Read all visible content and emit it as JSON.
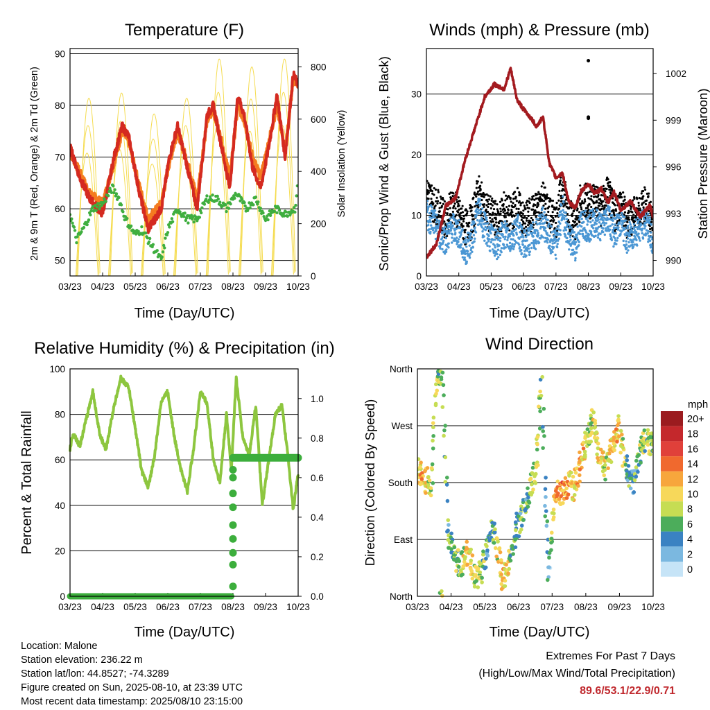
{
  "panels": {
    "temperature": {
      "title": "Temperature (F)",
      "xlabel": "Time (Day/UTC)",
      "ylabel_left": "2m & 9m T (Red, Orange) & 2m Td (Green)",
      "ylabel_right": "Solar Insolation (Yellow)"
    },
    "winds": {
      "title": "Winds (mph) & Pressure (mb)",
      "xlabel": "Time (Day/UTC)",
      "ylabel_left": "Sonic/Prop Wind & Gust (Blue, Black)",
      "ylabel_right": "Station Pressure (Maroon)"
    },
    "humidity": {
      "title": "Relative Humidity (%) & Precipitation (in)",
      "xlabel": "Time (Day/UTC)",
      "ylabel_left": "Percent & Total Rainfall"
    },
    "direction": {
      "title": "Wind Direction",
      "xlabel": "Time (Day/UTC)",
      "ylabel_left": "Direction (Colored By Speed)",
      "colorbar_title": "mph"
    }
  },
  "x_ticks": [
    "03/23",
    "04/23",
    "05/23",
    "06/23",
    "07/23",
    "08/23",
    "09/23",
    "10/23"
  ],
  "info": {
    "location": "Location: Malone",
    "elevation": "Station elevation: 236.22 m",
    "latlon": "Station lat/lon: 44.8527; -74.3289",
    "created": "Figure created on Sun, 2025-08-10, at 23:39 UTC",
    "recent": "Most recent data timestamp: 2025/08/10 23:15:00"
  },
  "extremes": {
    "title": "Extremes For Past 7 Days",
    "subtitle": "(High/Low/Max Wind/Total Precipitation)",
    "values": "89.6/53.1/22.9/0.71"
  },
  "colors": {
    "temp_2m": "#d42a20",
    "temp_9m": "#f47b20",
    "dewpoint": "#3fae3f",
    "insolation": "#f5dc50",
    "wind": "#4b97d4",
    "gust": "#000000",
    "pressure": "#a31a1f",
    "humidity": "#8dc63f",
    "precip": "#3cae3c",
    "extremes": "#c0282d"
  },
  "chart_data": [
    {
      "type": "line",
      "title": "Temperature (F)",
      "xlabel": "Time (Day/UTC)",
      "ylabel": "2m & 9m T (Red, Orange) & 2m Td (Green)",
      "y2label": "Solar Insolation (Yellow)",
      "x_ticks": [
        "03/23",
        "04/23",
        "05/23",
        "06/23",
        "07/23",
        "08/23",
        "09/23",
        "10/23"
      ],
      "ylim": [
        47,
        91
      ],
      "y2lim": [
        0,
        870
      ],
      "yticks": [
        50,
        60,
        70,
        80,
        90
      ],
      "y2ticks": [
        0,
        200,
        400,
        600,
        800
      ],
      "series": [
        {
          "name": "2m T",
          "color": "#d42a20",
          "x": [
            0,
            0.3,
            0.6,
            1.0,
            1.35,
            1.6,
            1.8,
            2.1,
            2.4,
            2.8,
            3.05,
            3.3,
            3.6,
            3.9,
            4.2,
            4.4,
            4.65,
            4.9,
            5.15,
            5.35,
            5.6,
            5.85,
            6.1,
            6.35,
            6.6,
            6.85,
            7.0
          ],
          "values": [
            72,
            66,
            62,
            59,
            70,
            76,
            74,
            64,
            56,
            60,
            70,
            76,
            68,
            60,
            78,
            80,
            72,
            64,
            82,
            78,
            68,
            64,
            72,
            82,
            70,
            86,
            84
          ]
        },
        {
          "name": "9m T",
          "color": "#f47b20",
          "x": [
            0,
            0.3,
            0.6,
            1.0,
            1.35,
            1.6,
            1.8,
            2.1,
            2.4,
            2.8,
            3.05,
            3.3,
            3.6,
            3.9,
            4.2,
            4.4,
            4.65,
            4.9,
            5.15,
            5.35,
            5.6,
            5.85,
            6.1,
            6.35,
            6.6,
            6.85,
            7.0
          ],
          "values": [
            71,
            67,
            63,
            61,
            69,
            75,
            73,
            65,
            58,
            61,
            69,
            75,
            69,
            62,
            77,
            79,
            73,
            66,
            80,
            77,
            70,
            66,
            73,
            80,
            71,
            85,
            84
          ]
        },
        {
          "name": "2m Td",
          "color": "#3fae3f",
          "x": [
            0,
            0.2,
            0.4,
            0.7,
            1.0,
            1.3,
            1.5,
            1.7,
            2.0,
            2.2,
            2.5,
            2.8,
            3.0,
            3.3,
            3.6,
            3.9,
            4.2,
            4.5,
            4.8,
            5.1,
            5.4,
            5.7,
            6.0,
            6.3,
            6.6,
            6.9,
            7.0
          ],
          "values": [
            59,
            54,
            56,
            60,
            61,
            64,
            62,
            58,
            55,
            56,
            53,
            50,
            56,
            60,
            58,
            58,
            62,
            62,
            60,
            63,
            60,
            62,
            58,
            60,
            59,
            60,
            65
          ]
        },
        {
          "name": "Solar Insolation",
          "color": "#f5dc50",
          "axis": "right",
          "peak_x": [
            0.55,
            1.55,
            2.55,
            3.55,
            4.55,
            5.55,
            6.55
          ],
          "peak_values": [
            700,
            720,
            640,
            700,
            850,
            820,
            850
          ]
        }
      ]
    },
    {
      "type": "line",
      "title": "Winds (mph) & Pressure (mb)",
      "xlabel": "Time (Day/UTC)",
      "ylabel": "Sonic/Prop Wind & Gust (Blue, Black)",
      "y2label": "Station Pressure (Maroon)",
      "x_ticks": [
        "03/23",
        "04/23",
        "05/23",
        "06/23",
        "07/23",
        "08/23",
        "09/23",
        "10/23"
      ],
      "ylim": [
        0,
        37.5
      ],
      "y2lim": [
        989,
        1003.6
      ],
      "yticks": [
        0,
        10,
        20,
        30
      ],
      "y2ticks": [
        990,
        993,
        996,
        999,
        1002
      ],
      "series": [
        {
          "name": "Pressure",
          "color": "#a31a1f",
          "axis": "right",
          "x": [
            0,
            0.3,
            0.6,
            0.9,
            1.2,
            1.5,
            1.8,
            2.1,
            2.4,
            2.6,
            2.8,
            3.0,
            3.2,
            3.4,
            3.6,
            3.8,
            4.0,
            4.2,
            4.4,
            4.6,
            4.8,
            5.0,
            5.2,
            5.4,
            5.6,
            5.8,
            6.0,
            6.3,
            6.6,
            6.9,
            7.0
          ],
          "values": [
            990.2,
            991.0,
            993.5,
            994.0,
            996.5,
            998.5,
            1000.5,
            1001.3,
            1001.0,
            1002.3,
            1000.3,
            999.7,
            999.2,
            998.6,
            999.2,
            996.2,
            995.3,
            995.6,
            993.7,
            993.4,
            994.5,
            994.9,
            994.3,
            994.6,
            993.7,
            994.4,
            993.2,
            993.8,
            992.8,
            993.5,
            992.8
          ]
        },
        {
          "name": "Gust",
          "color": "#000000",
          "x": [
            0,
            0.2,
            0.4,
            0.6,
            0.8,
            1.0,
            1.2,
            1.4,
            1.6,
            1.8,
            2.0,
            2.2,
            2.4,
            2.6,
            2.8,
            3.0,
            3.2,
            3.4,
            3.6,
            3.8,
            4.0,
            4.2,
            4.4,
            4.6,
            4.8,
            5.0,
            5.2,
            5.4,
            5.6,
            5.8,
            6.0,
            6.2,
            6.4,
            6.6,
            6.8,
            7.0
          ],
          "values": [
            14,
            12,
            11,
            9,
            12,
            10,
            8,
            9,
            14,
            11,
            10,
            9,
            11,
            10,
            12,
            9,
            10,
            11,
            13,
            10,
            9,
            15,
            10,
            9,
            13,
            12,
            13,
            11,
            14,
            10,
            12,
            9,
            10,
            11,
            12,
            8
          ]
        },
        {
          "name": "Wind",
          "color": "#4b97d4",
          "x": [
            0,
            0.2,
            0.4,
            0.6,
            0.8,
            1.0,
            1.2,
            1.4,
            1.6,
            1.8,
            2.0,
            2.2,
            2.4,
            2.6,
            2.8,
            3.0,
            3.2,
            3.4,
            3.6,
            3.8,
            4.0,
            4.2,
            4.4,
            4.6,
            4.8,
            5.0,
            5.2,
            5.4,
            5.6,
            5.8,
            6.0,
            6.2,
            6.4,
            6.6,
            6.8,
            7.0
          ],
          "values": [
            10,
            9,
            7,
            6,
            8,
            7,
            4,
            6,
            11,
            8,
            6,
            5,
            7,
            6,
            8,
            5,
            6,
            7,
            9,
            6,
            5,
            11,
            6,
            5,
            9,
            8,
            9,
            8,
            10,
            7,
            9,
            6,
            7,
            8,
            9,
            5
          ]
        },
        {
          "name": "Outlier gusts",
          "color": "#000000",
          "kind": "points",
          "x": [
            5.0,
            5.0,
            5.0
          ],
          "values": [
            35.5,
            26.2,
            26.0
          ]
        }
      ]
    },
    {
      "type": "line",
      "title": "Relative Humidity (%) & Precipitation (in)",
      "xlabel": "Time (Day/UTC)",
      "ylabel": "Percent & Total Rainfall",
      "x_ticks": [
        "03/23",
        "04/23",
        "05/23",
        "06/23",
        "07/23",
        "08/23",
        "09/23",
        "10/23"
      ],
      "ylim": [
        0,
        100
      ],
      "y2lim": [
        0,
        1.15
      ],
      "yticks": [
        0,
        20,
        40,
        60,
        80,
        100
      ],
      "y2ticks": [
        0.0,
        0.2,
        0.4,
        0.6,
        0.8,
        1.0
      ],
      "series": [
        {
          "name": "Relative Humidity",
          "color": "#8dc63f",
          "x": [
            0,
            0.1,
            0.3,
            0.5,
            0.7,
            0.9,
            1.1,
            1.3,
            1.55,
            1.8,
            2.0,
            2.2,
            2.4,
            2.6,
            2.8,
            3.0,
            3.2,
            3.4,
            3.6,
            3.8,
            4.0,
            4.2,
            4.4,
            4.6,
            4.8,
            4.95,
            5.1,
            5.3,
            5.5,
            5.7,
            5.9,
            6.1,
            6.3,
            6.5,
            6.7,
            6.85,
            7.0
          ],
          "values": [
            65,
            72,
            66,
            78,
            90,
            72,
            64,
            80,
            96,
            92,
            74,
            55,
            48,
            62,
            86,
            90,
            70,
            56,
            46,
            66,
            90,
            85,
            60,
            50,
            80,
            56,
            96,
            70,
            62,
            84,
            40,
            60,
            80,
            84,
            60,
            38,
            54
          ]
        },
        {
          "name": "Total Precipitation",
          "color": "#3cae3c",
          "axis": "right",
          "x": [
            0,
            1.0,
            2.0,
            3.0,
            4.0,
            4.95,
            5.0,
            5.05,
            6.0,
            7.0
          ],
          "values": [
            0.0,
            0.0,
            0.0,
            0.0,
            0.0,
            0.0,
            0.5,
            0.7,
            0.7,
            0.7
          ]
        }
      ]
    },
    {
      "type": "scatter",
      "title": "Wind Direction",
      "xlabel": "Time (Day/UTC)",
      "ylabel": "Direction (Colored By Speed)",
      "x_ticks": [
        "03/23",
        "04/23",
        "05/23",
        "06/23",
        "07/23",
        "08/23",
        "09/23",
        "10/23"
      ],
      "y_ticks": [
        "North",
        "East",
        "South",
        "West",
        "North"
      ],
      "ylim": [
        0,
        360
      ],
      "colorbar": {
        "title": "mph",
        "labels": [
          "20+",
          "18",
          "16",
          "14",
          "12",
          "10",
          "8",
          "6",
          "4",
          "2",
          "0"
        ],
        "colors": [
          "#9b1b1f",
          "#c4282c",
          "#e0403a",
          "#f0692e",
          "#f7a63c",
          "#f7d85a",
          "#c6dd53",
          "#4cad5b",
          "#3a82c2",
          "#7bb8e0",
          "#c6e4f7"
        ]
      },
      "series": [
        {
          "name": "Direction",
          "x": [
            0,
            0.2,
            0.4,
            0.5,
            0.6,
            0.75,
            0.9,
            1.1,
            1.3,
            1.5,
            1.7,
            1.9,
            2.1,
            2.3,
            2.5,
            2.7,
            2.9,
            3.1,
            3.3,
            3.5,
            3.6,
            3.7,
            3.8,
            3.9,
            4.1,
            4.3,
            4.5,
            4.6,
            4.8,
            5.0,
            5.2,
            5.4,
            5.6,
            5.8,
            6.0,
            6.2,
            6.4,
            6.6,
            6.8,
            7.0
          ],
          "values": [
            200,
            190,
            170,
            300,
            350,
            355,
            100,
            60,
            50,
            70,
            30,
            40,
            80,
            110,
            30,
            40,
            100,
            130,
            160,
            200,
            260,
            330,
            140,
            30,
            170,
            160,
            180,
            170,
            200,
            240,
            280,
            230,
            200,
            240,
            270,
            200,
            180,
            230,
            250,
            240
          ],
          "speeds": [
            10,
            12,
            8,
            8,
            7,
            9,
            5,
            6,
            8,
            11,
            9,
            8,
            5,
            7,
            11,
            9,
            6,
            5,
            6,
            8,
            8,
            6,
            4,
            3,
            12,
            13,
            11,
            10,
            12,
            9,
            8,
            10,
            9,
            10,
            11,
            6,
            4,
            7,
            8,
            6
          ]
        }
      ]
    }
  ]
}
